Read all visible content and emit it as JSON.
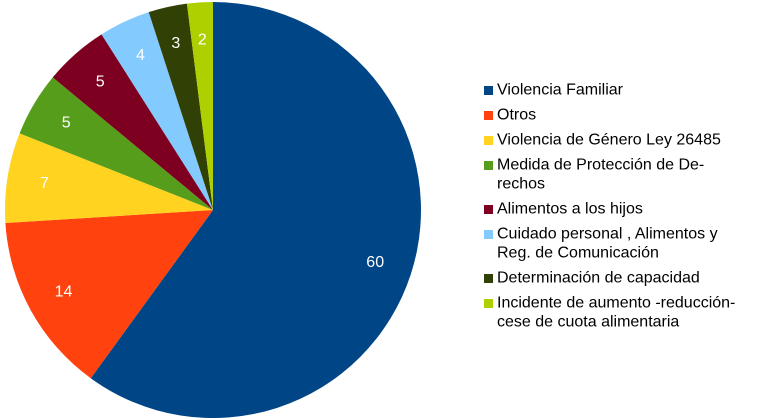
{
  "chart_data": {
    "type": "pie",
    "title": "",
    "start_angle": "12 o'clock",
    "direction": "clockwise",
    "legend_position": "right",
    "slices": [
      {
        "label": "Violencia Familiar",
        "legend_lines": [
          "Violencia Familiar"
        ],
        "value": 60,
        "display": "60",
        "color": "#004586"
      },
      {
        "label": "Otros",
        "legend_lines": [
          "Otros"
        ],
        "value": 14,
        "display": "14",
        "color": "#ff420e"
      },
      {
        "label": "Violencia de Género Ley 26485",
        "legend_lines": [
          "Violencia de Género Ley 26485"
        ],
        "value": 7,
        "display": "7",
        "color": "#ffd320"
      },
      {
        "label": "Medida de Protección de Derechos",
        "legend_lines": [
          "Medida de Protección de De-",
          "rechos"
        ],
        "value": 5,
        "display": "5",
        "color": "#579d1c"
      },
      {
        "label": "Alimentos a los hijos",
        "legend_lines": [
          "Alimentos a los hijos"
        ],
        "value": 5,
        "display": "5",
        "color": "#7e0021"
      },
      {
        "label": "Cuidado personal , Alimentos y Reg. de Comunicación",
        "legend_lines": [
          "Cuidado personal , Alimentos y",
          "Reg. de Comunicación"
        ],
        "value": 4,
        "display": "4",
        "color": "#83caff"
      },
      {
        "label": "Determinación de capacidad",
        "legend_lines": [
          "Determinación de capacidad"
        ],
        "value": 3,
        "display": "3",
        "color": "#314004"
      },
      {
        "label": "Incidente de aumento -reducción-cese de cuota alimentaria",
        "legend_lines": [
          "Incidente de aumento -reducción-",
          "cese de cuota alimentaria"
        ],
        "value": 2,
        "display": "2",
        "color": "#aecf00"
      }
    ]
  }
}
